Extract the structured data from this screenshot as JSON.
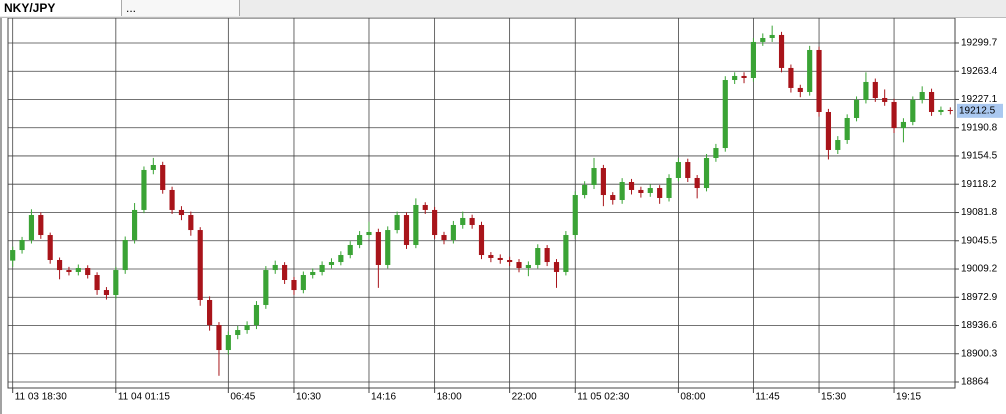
{
  "tabs": [
    "NKY/JPY",
    "..."
  ],
  "chart_data": {
    "type": "candlestick",
    "symbol_tab": 0,
    "up_color": "#3aa335",
    "down_color": "#a8141a",
    "current_price": 19212.5,
    "xlim": [
      -0.5,
      100.5
    ],
    "ylim": [
      18856.3,
      19331.8
    ],
    "yticks": [
      19299.7,
      19263.4,
      19227.1,
      19190.8,
      19154.5,
      19118.2,
      19081.8,
      19045.5,
      19009.2,
      18972.9,
      18936.6,
      18900.3,
      18864.0
    ],
    "xticks": [
      {
        "value": 0,
        "label": "11 03 18:30"
      },
      {
        "value": 11,
        "label": "11 04 01:15"
      },
      {
        "value": 23,
        "label": "06:45"
      },
      {
        "value": 30,
        "label": "10:30"
      },
      {
        "value": 38,
        "label": "14:16"
      },
      {
        "value": 45,
        "label": "18:00"
      },
      {
        "value": 53,
        "label": "22:00"
      },
      {
        "value": 60,
        "label": "11 05 02:30"
      },
      {
        "value": 71,
        "label": "08:00"
      },
      {
        "value": 79,
        "label": "11:45"
      },
      {
        "value": 86,
        "label": "15:30"
      },
      {
        "value": 94,
        "label": "19:15"
      }
    ],
    "grid": true,
    "candles": [
      [
        19020.0,
        19038.0,
        19012.0,
        19033.6
      ],
      [
        19033.6,
        19050.5,
        19029.0,
        19046.5
      ],
      [
        19046.5,
        19086.0,
        19042.0,
        19078.6
      ],
      [
        19078.6,
        19082.0,
        19048.0,
        19052.9
      ],
      [
        19052.9,
        19056.0,
        19016.0,
        19020.8
      ],
      [
        19020.8,
        19024.0,
        18996.0,
        19007.9
      ],
      [
        19007.9,
        19012.0,
        19001.0,
        19005.4
      ],
      [
        19005.4,
        19015.0,
        19001.0,
        19010.5
      ],
      [
        19010.5,
        19014.0,
        18997.0,
        19001.5
      ],
      [
        19001.5,
        19005.0,
        18976.0,
        18982.2
      ],
      [
        18982.2,
        18986.0,
        18970.0,
        18975.8
      ],
      [
        18975.8,
        19012.0,
        18971.0,
        19007.9
      ],
      [
        19007.9,
        19051.0,
        19003.0,
        19046.5
      ],
      [
        19046.5,
        19094.0,
        19042.0,
        19085.1
      ],
      [
        19085.1,
        19141.0,
        19081.0,
        19136.5
      ],
      [
        19136.5,
        19152.0,
        19131.0,
        19142.9
      ],
      [
        19142.9,
        19147.0,
        19106.0,
        19110.8
      ],
      [
        19110.8,
        19115.0,
        19080.0,
        19085.1
      ],
      [
        19085.1,
        19090.0,
        19072.0,
        19078.6
      ],
      [
        19078.6,
        19083.0,
        19052.0,
        19059.3
      ],
      [
        19059.3,
        19063.0,
        18962.0,
        18969.4
      ],
      [
        18969.4,
        18974.0,
        18930.0,
        18937.2
      ],
      [
        18937.2,
        18941.0,
        18872.0,
        18905.1
      ],
      [
        18905.1,
        18929.0,
        18899.0,
        18924.4
      ],
      [
        18924.4,
        18936.0,
        18919.0,
        18930.8
      ],
      [
        18930.8,
        18942.0,
        18926.0,
        18937.2
      ],
      [
        18937.2,
        18968.0,
        18932.0,
        18963.0
      ],
      [
        18963.0,
        19013.0,
        18958.0,
        19007.9
      ],
      [
        19007.9,
        19020.0,
        19003.0,
        19014.4
      ],
      [
        19014.4,
        19018.0,
        18990.0,
        18995.1
      ],
      [
        18995.1,
        18999.0,
        18976.0,
        18982.2
      ],
      [
        18982.2,
        19006.0,
        18978.0,
        19001.5
      ],
      [
        19001.5,
        19010.0,
        18997.0,
        19005.4
      ],
      [
        19005.4,
        19019.0,
        19001.0,
        19014.4
      ],
      [
        19014.4,
        19023.0,
        19010.0,
        19018.2
      ],
      [
        19018.2,
        19032.0,
        19014.0,
        19027.2
      ],
      [
        19027.2,
        19045.0,
        19023.0,
        19040.1
      ],
      [
        19040.1,
        19058.0,
        19036.0,
        19052.9
      ],
      [
        19052.9,
        19070.0,
        19048.0,
        19056.8
      ],
      [
        19056.8,
        19061.0,
        18985.0,
        19014.4
      ],
      [
        19014.4,
        19064.0,
        19010.0,
        19059.3
      ],
      [
        19059.3,
        19083.0,
        19055.0,
        19078.6
      ],
      [
        19078.6,
        19082.0,
        19035.0,
        19040.1
      ],
      [
        19040.1,
        19100.0,
        19036.0,
        19091.5
      ],
      [
        19091.5,
        19095.0,
        19080.0,
        19085.1
      ],
      [
        19085.1,
        19089.0,
        19048.0,
        19052.9
      ],
      [
        19052.9,
        19057.0,
        19041.0,
        19046.5
      ],
      [
        19046.5,
        19071.0,
        19042.0,
        19065.8
      ],
      [
        19065.8,
        19083.0,
        19061.0,
        19074.8
      ],
      [
        19074.8,
        19079.0,
        19061.0,
        19065.8
      ],
      [
        19065.8,
        19070.0,
        19022.0,
        19027.2
      ],
      [
        19027.2,
        19031.0,
        19018.0,
        19023.4
      ],
      [
        19023.4,
        19028.0,
        19016.0,
        19020.8
      ],
      [
        19020.8,
        19025.0,
        19013.0,
        19018.2
      ],
      [
        19018.2,
        19022.0,
        19005.0,
        19010.5
      ],
      [
        19010.5,
        19019.0,
        19000.0,
        19014.4
      ],
      [
        19014.4,
        19041.0,
        19010.0,
        19036.2
      ],
      [
        19036.2,
        19040.0,
        19013.0,
        19018.2
      ],
      [
        19018.2,
        19022.0,
        18985.0,
        19005.4
      ],
      [
        19005.4,
        19058.0,
        19001.0,
        19052.9
      ],
      [
        19052.9,
        19109.0,
        19048.0,
        19104.3
      ],
      [
        19104.3,
        19122.0,
        19100.0,
        19117.2
      ],
      [
        19117.2,
        19152.0,
        19112.0,
        19139.0
      ],
      [
        19139.0,
        19143.0,
        19090.0,
        19104.3
      ],
      [
        19104.3,
        19108.0,
        19092.0,
        19097.9
      ],
      [
        19097.9,
        19126.0,
        19093.0,
        19121.0
      ],
      [
        19121.0,
        19125.0,
        19105.0,
        19110.8
      ],
      [
        19110.8,
        19115.0,
        19101.0,
        19106.9
      ],
      [
        19106.9,
        19118.0,
        19102.0,
        19113.3
      ],
      [
        19113.3,
        19117.0,
        19093.0,
        19100.5
      ],
      [
        19100.5,
        19131.0,
        19096.0,
        19126.2
      ],
      [
        19126.2,
        19152.0,
        19122.0,
        19146.7
      ],
      [
        19146.7,
        19151.0,
        19121.0,
        19126.2
      ],
      [
        19126.2,
        19130.0,
        19100.0,
        19113.3
      ],
      [
        19113.3,
        19157.0,
        19109.0,
        19151.9
      ],
      [
        19151.9,
        19170.0,
        19147.0,
        19164.7
      ],
      [
        19164.7,
        19257.0,
        19160.0,
        19252.1
      ],
      [
        19252.1,
        19262.0,
        19247.0,
        19257.3
      ],
      [
        19257.3,
        19262.0,
        19248.0,
        19254.7
      ],
      [
        19254.7,
        19306.0,
        19250.0,
        19301.0
      ],
      [
        19301.0,
        19312.0,
        19296.0,
        19306.1
      ],
      [
        19306.1,
        19322.0,
        19301.0,
        19310.0
      ],
      [
        19310.0,
        19314.0,
        19262.0,
        19267.6
      ],
      [
        19267.6,
        19272.0,
        19236.0,
        19241.9
      ],
      [
        19241.9,
        19246.0,
        19230.0,
        19236.7
      ],
      [
        19236.7,
        19296.0,
        19232.0,
        19290.7
      ],
      [
        19290.7,
        19295.0,
        19205.0,
        19211.0
      ],
      [
        19211.0,
        19215.0,
        19150.0,
        19162.2
      ],
      [
        19162.2,
        19180.0,
        19157.0,
        19175.0
      ],
      [
        19175.0,
        19208.0,
        19170.0,
        19203.3
      ],
      [
        19203.3,
        19231.0,
        19199.0,
        19226.4
      ],
      [
        19226.4,
        19262.0,
        19222.0,
        19249.6
      ],
      [
        19249.6,
        19254.0,
        19224.0,
        19229.0
      ],
      [
        19229.0,
        19240.0,
        19219.0,
        19223.9
      ],
      [
        19223.9,
        19228.0,
        19184.0,
        19190.4
      ],
      [
        19190.4,
        19203.0,
        19172.0,
        19198.2
      ],
      [
        19198.2,
        19231.0,
        19194.0,
        19226.4
      ],
      [
        19226.4,
        19244.0,
        19222.0,
        19236.7
      ],
      [
        19236.7,
        19241.0,
        19206.0,
        19211.0
      ],
      [
        19211.0,
        19218.0,
        19207.0,
        19213.6
      ],
      [
        19213.6,
        19217.0,
        19208.0,
        19212.5
      ]
    ]
  }
}
